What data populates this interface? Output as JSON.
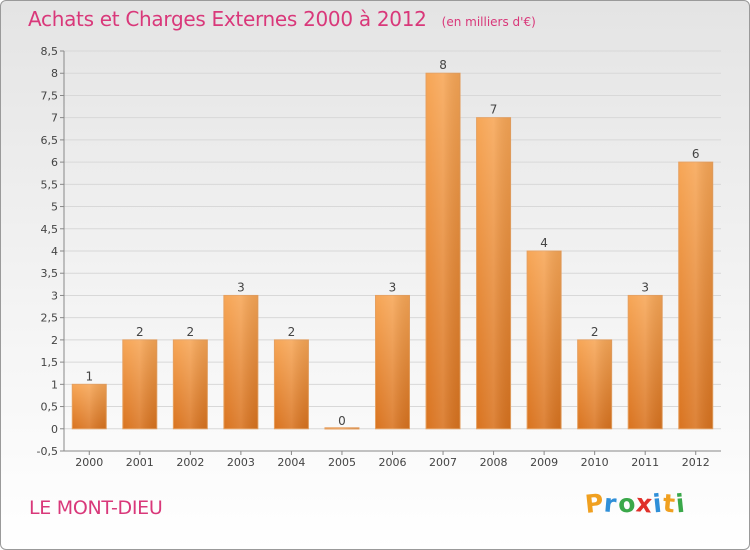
{
  "header": {
    "title": "Achats et Charges Externes 2000 à 2012",
    "subtitle": "(en milliers d'€)"
  },
  "place": "LE MONT-DIEU",
  "logo": {
    "letters": [
      "P",
      "r",
      "o",
      "x",
      "i",
      "t",
      "i"
    ],
    "colors": [
      "#f0a020",
      "#2f8fd8",
      "#3aa84a",
      "#e0302a",
      "#2f8fd8",
      "#f0a020",
      "#3aa84a"
    ]
  },
  "chart_data": {
    "type": "bar",
    "categories": [
      "2000",
      "2001",
      "2002",
      "2003",
      "2004",
      "2005",
      "2006",
      "2007",
      "2008",
      "2009",
      "2010",
      "2011",
      "2012"
    ],
    "values": [
      1,
      2,
      2,
      3,
      2,
      0,
      3,
      8,
      7,
      4,
      2,
      3,
      6
    ],
    "data_labels": [
      "1",
      "2",
      "2",
      "3",
      "2",
      "0",
      "3",
      "8",
      "7",
      "4",
      "2",
      "3",
      "6"
    ],
    "title": "Achats et Charges Externes 2000 à 2012",
    "xlabel": "",
    "ylabel": "",
    "ylim": [
      -0.5,
      8.5
    ],
    "yticks": [
      "-0,5",
      "0",
      "0,5",
      "1",
      "1,5",
      "2",
      "2,5",
      "3",
      "3,5",
      "4",
      "4,5",
      "5",
      "5,5",
      "6",
      "6,5",
      "7",
      "7,5",
      "8",
      "8,5"
    ],
    "bar_color": "#f0a050",
    "grid": true,
    "legend": "none"
  }
}
